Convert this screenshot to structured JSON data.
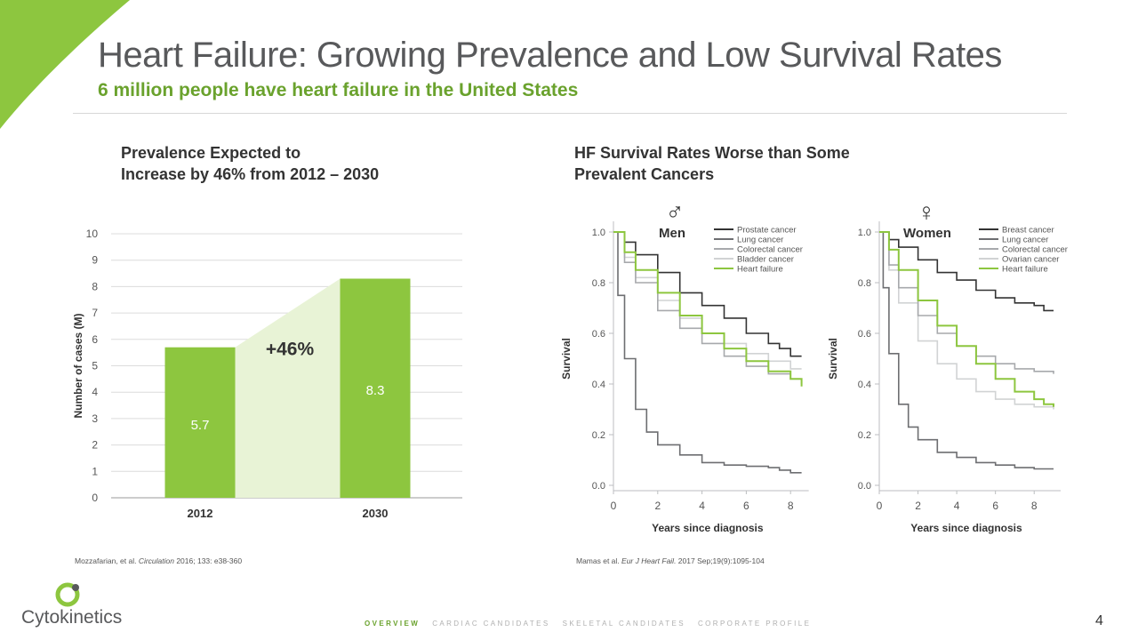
{
  "header": {
    "title": "Heart Failure: Growing Prevalence and Low Survival Rates",
    "subtitle": "6 million people have heart failure in the United States"
  },
  "left_panel": {
    "title_line1": "Prevalence Expected to",
    "title_line2": "Increase by 46% from 2012 – 2030",
    "citation_pre": "Mozzafarian, et al. ",
    "citation_journal": "Circulation",
    "citation_post": " 2016; 133: e38-360"
  },
  "right_panel": {
    "title_line1": "HF Survival Rates Worse than Some",
    "title_line2": "Prevalent Cancers",
    "citation_pre": "Mamas et al. ",
    "citation_journal": "Eur J Heart Fail.",
    "citation_post": " 2017 Sep;19(9):1095-104"
  },
  "colors": {
    "accent_green": "#8dc63f",
    "dark_green_text": "#6aa22d",
    "light_green_fill": "#e8f3d6",
    "dark_series": "#333333",
    "mid_series": "#6d6e71",
    "light_series": "#a7a9ac",
    "lightest_series": "#d1d3d4"
  },
  "chart_data": [
    {
      "type": "bar",
      "categories": [
        "2012",
        "2030"
      ],
      "values": [
        5.7,
        8.3
      ],
      "value_labels": [
        "5.7",
        "8.3"
      ],
      "ylabel": "Number of cases (M)",
      "ylim": [
        0,
        10
      ],
      "yticks": [
        "0",
        "1",
        "2",
        "3",
        "4",
        "5",
        "6",
        "7",
        "8",
        "9",
        "10"
      ],
      "annotation": "+46%",
      "grid": true
    },
    {
      "type": "line",
      "panel_label": "Men",
      "symbol": "♂",
      "xlabel": "Years since diagnosis",
      "ylabel": "Survival",
      "xlim": [
        0,
        8.5
      ],
      "ylim": [
        0,
        1.0
      ],
      "xticks": [
        "0",
        "2",
        "4",
        "6",
        "8"
      ],
      "yticks": [
        "0.0",
        "0.2",
        "0.4",
        "0.6",
        "0.8",
        "1.0"
      ],
      "legend_position": "top-right",
      "series": [
        {
          "name": "Prostate cancer",
          "color": "#333333",
          "x": [
            0,
            0.5,
            1,
            2,
            3,
            4,
            5,
            6,
            7,
            7.5,
            8,
            8.5
          ],
          "y": [
            1.0,
            0.96,
            0.91,
            0.84,
            0.76,
            0.71,
            0.66,
            0.6,
            0.56,
            0.54,
            0.51,
            0.51
          ]
        },
        {
          "name": "Lung cancer",
          "color": "#6d6e71",
          "x": [
            0,
            0.2,
            0.5,
            1,
            1.5,
            2,
            3,
            4,
            5,
            6,
            7,
            7.5,
            8,
            8.5
          ],
          "y": [
            1.0,
            0.75,
            0.5,
            0.3,
            0.21,
            0.16,
            0.12,
            0.09,
            0.08,
            0.075,
            0.07,
            0.06,
            0.05,
            0.05
          ]
        },
        {
          "name": "Colorectal cancer",
          "color": "#a7a9ac",
          "x": [
            0,
            0.5,
            1,
            2,
            3,
            4,
            5,
            6,
            7,
            8,
            8.5
          ],
          "y": [
            1.0,
            0.88,
            0.8,
            0.69,
            0.62,
            0.56,
            0.51,
            0.47,
            0.44,
            0.42,
            0.4
          ]
        },
        {
          "name": "Bladder cancer",
          "color": "#d1d3d4",
          "x": [
            0,
            0.5,
            1,
            2,
            3,
            4,
            5,
            6,
            7,
            8,
            8.5
          ],
          "y": [
            1.0,
            0.9,
            0.82,
            0.73,
            0.66,
            0.6,
            0.56,
            0.52,
            0.49,
            0.46,
            0.46
          ]
        },
        {
          "name": "Heart failure",
          "color": "#8dc63f",
          "x": [
            0,
            0.5,
            1,
            2,
            3,
            4,
            5,
            6,
            7,
            8,
            8.5
          ],
          "y": [
            1.0,
            0.92,
            0.85,
            0.76,
            0.67,
            0.6,
            0.54,
            0.49,
            0.45,
            0.42,
            0.39
          ]
        }
      ]
    },
    {
      "type": "line",
      "panel_label": "Women",
      "symbol": "♀",
      "xlabel": "Years since diagnosis",
      "ylabel": "Survival",
      "xlim": [
        0,
        9
      ],
      "ylim": [
        0,
        1.0
      ],
      "xticks": [
        "0",
        "2",
        "4",
        "6",
        "8"
      ],
      "yticks": [
        "0.0",
        "0.2",
        "0.4",
        "0.6",
        "0.8",
        "1.0"
      ],
      "legend_position": "top-right",
      "series": [
        {
          "name": "Breast cancer",
          "color": "#333333",
          "x": [
            0,
            0.5,
            1,
            2,
            3,
            4,
            5,
            6,
            7,
            8,
            8.5,
            9
          ],
          "y": [
            1.0,
            0.97,
            0.94,
            0.89,
            0.84,
            0.81,
            0.77,
            0.74,
            0.72,
            0.71,
            0.69,
            0.69
          ]
        },
        {
          "name": "Lung cancer",
          "color": "#6d6e71",
          "x": [
            0,
            0.2,
            0.5,
            1,
            1.5,
            2,
            3,
            4,
            5,
            6,
            7,
            8,
            9
          ],
          "y": [
            1.0,
            0.78,
            0.52,
            0.32,
            0.23,
            0.18,
            0.13,
            0.11,
            0.09,
            0.08,
            0.07,
            0.065,
            0.065
          ]
        },
        {
          "name": "Colorectal cancer",
          "color": "#a7a9ac",
          "x": [
            0,
            0.5,
            1,
            2,
            3,
            4,
            5,
            6,
            7,
            8,
            9
          ],
          "y": [
            1.0,
            0.87,
            0.78,
            0.67,
            0.6,
            0.55,
            0.51,
            0.48,
            0.46,
            0.45,
            0.44
          ]
        },
        {
          "name": "Ovarian cancer",
          "color": "#d1d3d4",
          "x": [
            0,
            0.5,
            1,
            2,
            3,
            4,
            5,
            6,
            7,
            8,
            9
          ],
          "y": [
            1.0,
            0.85,
            0.72,
            0.57,
            0.48,
            0.42,
            0.37,
            0.34,
            0.32,
            0.31,
            0.3
          ]
        },
        {
          "name": "Heart failure",
          "color": "#8dc63f",
          "x": [
            0,
            0.5,
            1,
            2,
            3,
            4,
            5,
            6,
            7,
            8,
            8.5,
            9
          ],
          "y": [
            1.0,
            0.93,
            0.85,
            0.73,
            0.63,
            0.55,
            0.48,
            0.42,
            0.37,
            0.34,
            0.32,
            0.31
          ]
        }
      ]
    }
  ],
  "logo": {
    "text": "Cytokinetics"
  },
  "footer": {
    "nav": [
      {
        "label": "OVERVIEW",
        "active": true
      },
      {
        "label": "CARDIAC CANDIDATES",
        "active": false
      },
      {
        "label": "SKELETAL CANDIDATES",
        "active": false
      },
      {
        "label": "CORPORATE PROFILE",
        "active": false
      }
    ],
    "page_number": "4"
  }
}
